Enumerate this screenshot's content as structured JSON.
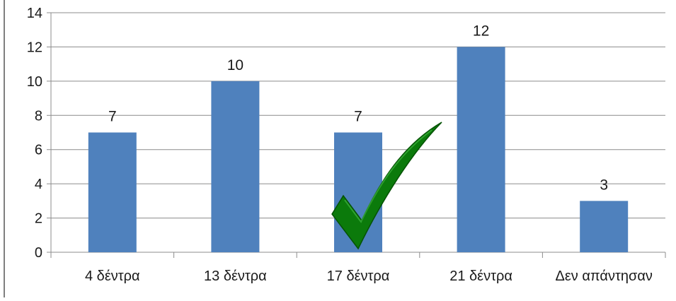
{
  "chart_data": {
    "type": "bar",
    "categories": [
      "4 δέντρα",
      "13 δέντρα",
      "17 δέντρα",
      "21 δέντρα",
      "Δεν απάντησαν"
    ],
    "values": [
      7,
      10,
      7,
      12,
      3
    ],
    "data_labels": [
      "7",
      "10",
      "7",
      "12",
      "3"
    ],
    "title": "",
    "xlabel": "",
    "ylabel": "",
    "ylim": [
      0,
      14
    ],
    "yticks": [
      0,
      2,
      4,
      6,
      8,
      10,
      12,
      14
    ],
    "grid": true,
    "legend": "none",
    "bar_color": "#4F81BD",
    "highlight": {
      "category": "17 δέντρα",
      "marker": "checkmark-icon",
      "color": "#0B7A0B"
    }
  }
}
